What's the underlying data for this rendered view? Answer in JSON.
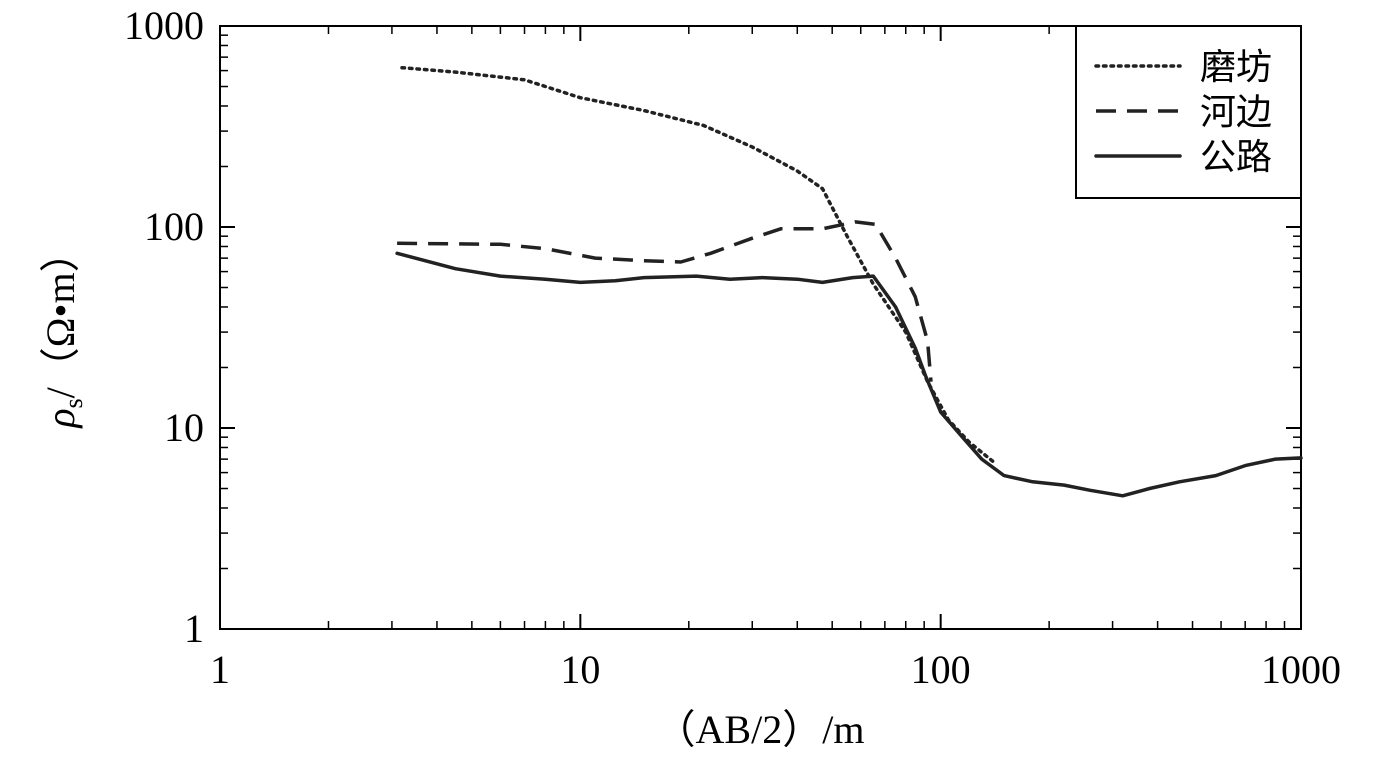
{
  "chart_data": {
    "type": "line",
    "x_scale": "log",
    "y_scale": "log",
    "xlim": [
      1,
      1000
    ],
    "ylim": [
      1,
      1000
    ],
    "xlabel": "（AB/2）/m",
    "ylabel": {
      "symbol": "ρ",
      "subscript": "s",
      "unit": "/（Ω•m）"
    },
    "x_ticks": [
      "1",
      "10",
      "100",
      "1000"
    ],
    "y_ticks": [
      "1",
      "10",
      "100",
      "1000"
    ],
    "legend_position": "top-right",
    "grid": false,
    "series": [
      {
        "name": "磨坊",
        "style": "dotted",
        "color": "#222222",
        "points": [
          [
            3.2,
            620
          ],
          [
            4.5,
            590
          ],
          [
            7,
            540
          ],
          [
            10,
            440
          ],
          [
            15,
            380
          ],
          [
            22,
            320
          ],
          [
            30,
            250
          ],
          [
            40,
            190
          ],
          [
            47,
            155
          ],
          [
            55,
            90
          ],
          [
            65,
            52
          ],
          [
            80,
            30
          ],
          [
            92,
            17
          ],
          [
            105,
            11
          ],
          [
            120,
            8.5
          ],
          [
            140,
            6.8
          ]
        ]
      },
      {
        "name": "河边",
        "style": "dashed",
        "color": "#222222",
        "points": [
          [
            3.1,
            83
          ],
          [
            6,
            82
          ],
          [
            8,
            78
          ],
          [
            11,
            70
          ],
          [
            15,
            68
          ],
          [
            19,
            67
          ],
          [
            23,
            74
          ],
          [
            30,
            88
          ],
          [
            36,
            98
          ],
          [
            47,
            98
          ],
          [
            58,
            106
          ],
          [
            66,
            103
          ],
          [
            75,
            70
          ],
          [
            85,
            45
          ],
          [
            92,
            27
          ],
          [
            94,
            17
          ]
        ]
      },
      {
        "name": "公路",
        "style": "solid",
        "color": "#222222",
        "points": [
          [
            3.1,
            74
          ],
          [
            4.5,
            62
          ],
          [
            6,
            57
          ],
          [
            8,
            55
          ],
          [
            10,
            53
          ],
          [
            12.5,
            54
          ],
          [
            15,
            56
          ],
          [
            21,
            57
          ],
          [
            26,
            55
          ],
          [
            32,
            56
          ],
          [
            40,
            55
          ],
          [
            47,
            53
          ],
          [
            57,
            56
          ],
          [
            65,
            57
          ],
          [
            75,
            40
          ],
          [
            85,
            25
          ],
          [
            91,
            18
          ],
          [
            100,
            12
          ],
          [
            115,
            9
          ],
          [
            130,
            7
          ],
          [
            150,
            5.8
          ],
          [
            180,
            5.4
          ],
          [
            220,
            5.2
          ],
          [
            260,
            4.9
          ],
          [
            320,
            4.6
          ],
          [
            380,
            5
          ],
          [
            460,
            5.4
          ],
          [
            580,
            5.8
          ],
          [
            700,
            6.5
          ],
          [
            850,
            7
          ],
          [
            1000,
            7.1
          ]
        ]
      }
    ]
  }
}
